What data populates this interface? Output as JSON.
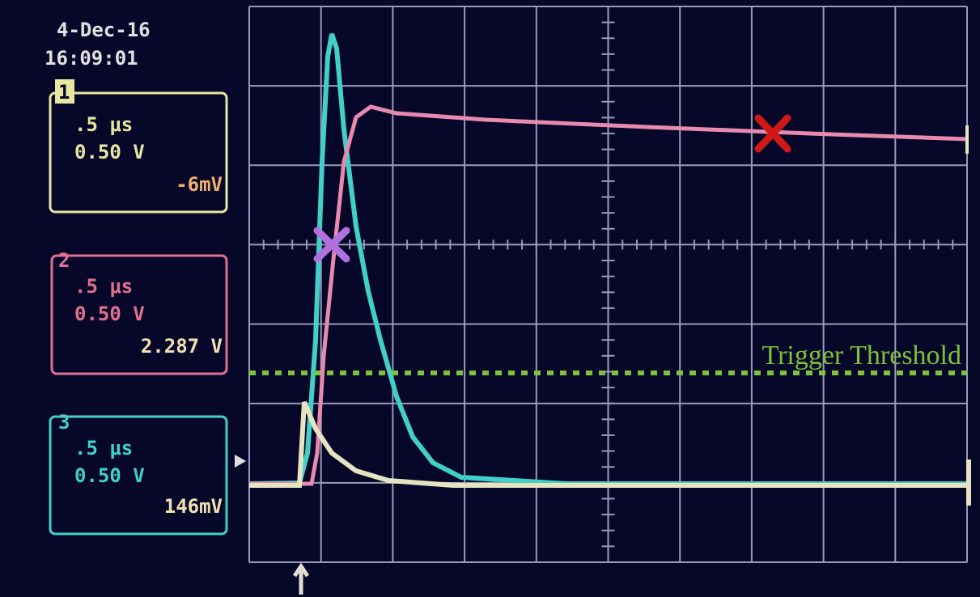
{
  "header": {
    "date": "4-Dec-16",
    "time": "16:09:01"
  },
  "channels": [
    {
      "number": "1",
      "timebase": ".5 μs",
      "scale": "0.50 V",
      "reading": "-6mV"
    },
    {
      "number": "2",
      "timebase": ".5 μs",
      "scale": "0.50 V",
      "reading": "2.287 V"
    },
    {
      "number": "3",
      "timebase": ".5 μs",
      "scale": "0.50 V",
      "reading": "146mV"
    }
  ],
  "annotation": "Trigger Threshold"
}
